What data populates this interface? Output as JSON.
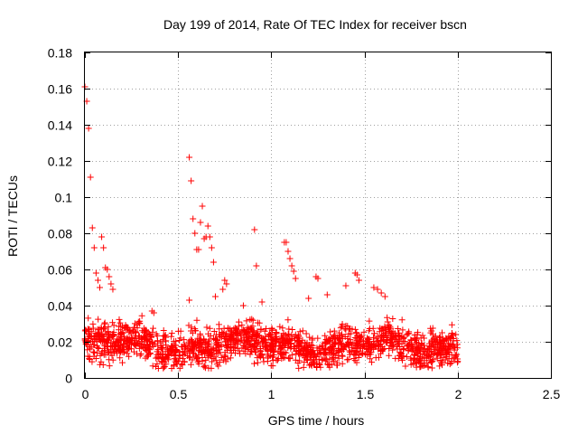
{
  "chart_data": {
    "type": "scatter",
    "title": "Day 199 of 2014, Rate Of TEC Index for receiver bscn",
    "xlabel": "GPS time / hours",
    "ylabel": "ROTI / TECUs",
    "xlim": [
      0,
      2.5
    ],
    "ylim": [
      0,
      0.18
    ],
    "xticks": [
      0,
      0.5,
      1,
      1.5,
      2,
      2.5
    ],
    "xtick_labels": [
      "0",
      "0.5",
      "1",
      "1.5",
      "2",
      "2.5"
    ],
    "yticks": [
      0,
      0.02,
      0.04,
      0.06,
      0.08,
      0.1,
      0.12,
      0.14,
      0.16,
      0.18
    ],
    "ytick_labels": [
      "0",
      "0.02",
      "0.04",
      "0.06",
      "0.08",
      "0.1",
      "0.12",
      "0.14",
      "0.16",
      "0.18"
    ],
    "grid": true,
    "marker": "plus",
    "color": "#ff0000",
    "series": [
      {
        "name": "ROTI",
        "highlights": [
          [
            0.0,
            0.161
          ],
          [
            0.01,
            0.153
          ],
          [
            0.02,
            0.138
          ],
          [
            0.03,
            0.111
          ],
          [
            0.04,
            0.083
          ],
          [
            0.05,
            0.072
          ],
          [
            0.06,
            0.058
          ],
          [
            0.07,
            0.054
          ],
          [
            0.08,
            0.05
          ],
          [
            0.09,
            0.078
          ],
          [
            0.1,
            0.072
          ],
          [
            0.11,
            0.061
          ],
          [
            0.12,
            0.06
          ],
          [
            0.13,
            0.056
          ],
          [
            0.14,
            0.052
          ],
          [
            0.15,
            0.049
          ],
          [
            0.56,
            0.122
          ],
          [
            0.57,
            0.109
          ],
          [
            0.58,
            0.088
          ],
          [
            0.59,
            0.08
          ],
          [
            0.6,
            0.071
          ],
          [
            0.61,
            0.071
          ],
          [
            0.62,
            0.086
          ],
          [
            0.63,
            0.095
          ],
          [
            0.64,
            0.077
          ],
          [
            0.65,
            0.078
          ],
          [
            0.66,
            0.084
          ],
          [
            0.67,
            0.078
          ],
          [
            0.68,
            0.072
          ],
          [
            0.69,
            0.064
          ],
          [
            0.91,
            0.082
          ],
          [
            0.92,
            0.062
          ],
          [
            1.07,
            0.075
          ],
          [
            1.08,
            0.075
          ],
          [
            1.09,
            0.07
          ],
          [
            1.1,
            0.066
          ],
          [
            1.11,
            0.062
          ],
          [
            1.12,
            0.059
          ],
          [
            1.13,
            0.055
          ],
          [
            1.25,
            0.055
          ],
          [
            1.24,
            0.056
          ],
          [
            1.45,
            0.058
          ],
          [
            1.46,
            0.057
          ],
          [
            1.47,
            0.054
          ],
          [
            0.75,
            0.054
          ],
          [
            0.76,
            0.052
          ],
          [
            0.74,
            0.049
          ],
          [
            0.95,
            0.042
          ],
          [
            1.55,
            0.05
          ],
          [
            1.57,
            0.049
          ],
          [
            1.59,
            0.047
          ],
          [
            1.61,
            0.045
          ],
          [
            1.4,
            0.051
          ],
          [
            1.3,
            0.046
          ],
          [
            1.2,
            0.044
          ],
          [
            0.36,
            0.037
          ],
          [
            0.37,
            0.036
          ],
          [
            0.56,
            0.043
          ],
          [
            0.7,
            0.045
          ],
          [
            0.85,
            0.04
          ]
        ],
        "dense_band": {
          "x_range": [
            0,
            2.0
          ],
          "y_center": 0.018,
          "y_spread": 0.009,
          "y_min": 0.005,
          "y_max": 0.036,
          "count": 1700
        }
      }
    ]
  }
}
